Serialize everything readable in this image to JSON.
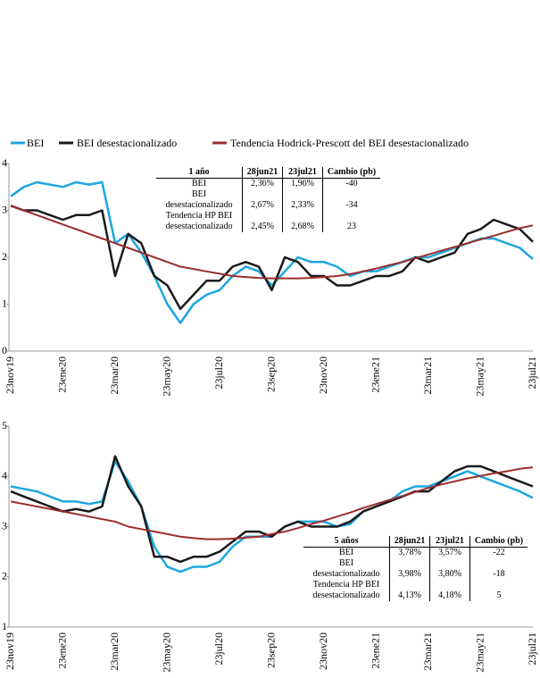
{
  "chart_data": [
    {
      "type": "line",
      "categories": [
        "23nov19",
        null,
        null,
        null,
        "23ene20",
        null,
        null,
        null,
        "23mar20",
        null,
        null,
        null,
        "23may20",
        null,
        null,
        null,
        "23jul20",
        null,
        null,
        null,
        "23sep20",
        null,
        null,
        null,
        "23nov20",
        null,
        null,
        null,
        "23ene21",
        null,
        null,
        null,
        "23mar21",
        null,
        null,
        null,
        "23may21",
        null,
        null,
        null,
        "23jul21"
      ],
      "ylim": [
        0,
        4
      ],
      "yticks": [
        0,
        1,
        2,
        3,
        4
      ],
      "series": [
        {
          "name": "BEI",
          "color": "#1ca6e0",
          "values": [
            3.3,
            3.5,
            3.6,
            3.55,
            3.5,
            3.6,
            3.55,
            3.6,
            2.3,
            2.5,
            2.1,
            1.6,
            1.0,
            0.6,
            1.0,
            1.2,
            1.3,
            1.6,
            1.8,
            1.7,
            1.4,
            1.7,
            2.0,
            1.9,
            1.9,
            1.8,
            1.6,
            1.7,
            1.7,
            1.8,
            1.9,
            2.0,
            2.0,
            2.1,
            2.2,
            2.3,
            2.4,
            2.4,
            2.3,
            2.2,
            1.96
          ]
        },
        {
          "name": "BEI desestacionalizado",
          "color": "#1a1a1a",
          "values": [
            3.1,
            3.0,
            3.0,
            2.9,
            2.8,
            2.9,
            2.9,
            3.0,
            1.6,
            2.5,
            2.3,
            1.6,
            1.4,
            0.9,
            1.2,
            1.5,
            1.5,
            1.8,
            1.9,
            1.8,
            1.3,
            2.0,
            1.9,
            1.6,
            1.6,
            1.4,
            1.4,
            1.5,
            1.6,
            1.6,
            1.7,
            2.0,
            1.9,
            2.0,
            2.1,
            2.5,
            2.6,
            2.8,
            2.7,
            2.6,
            2.33
          ]
        },
        {
          "name": "Tendencia Hodrick-Prescott del BEI desestacionalizado",
          "color": "#9b2d2d",
          "values": [
            3.1,
            3.0,
            2.9,
            2.8,
            2.7,
            2.6,
            2.5,
            2.4,
            2.3,
            2.2,
            2.1,
            2.0,
            1.9,
            1.8,
            1.75,
            1.7,
            1.65,
            1.6,
            1.58,
            1.56,
            1.55,
            1.55,
            1.55,
            1.56,
            1.58,
            1.6,
            1.64,
            1.7,
            1.76,
            1.83,
            1.9,
            1.98,
            2.06,
            2.14,
            2.22,
            2.3,
            2.38,
            2.46,
            2.54,
            2.62,
            2.68
          ]
        }
      ],
      "table": {
        "header": [
          "1 año",
          "28jun21",
          "23jul21",
          "Cambio (pb)"
        ],
        "rows": [
          [
            "BEI",
            "2,36%",
            "1,96%",
            "-40"
          ],
          [
            "BEI desestacionalizado",
            "2,67%",
            "2,33%",
            "-34"
          ],
          [
            "Tendencia HP BEI desestacionalizado",
            "2,45%",
            "2,68%",
            "23"
          ]
        ]
      }
    },
    {
      "type": "line",
      "categories": [
        "23nov19",
        null,
        null,
        null,
        "23ene20",
        null,
        null,
        null,
        "23mar20",
        null,
        null,
        null,
        "23may20",
        null,
        null,
        null,
        "23jul20",
        null,
        null,
        null,
        "23sep20",
        null,
        null,
        null,
        "23nov20",
        null,
        null,
        null,
        "23ene21",
        null,
        null,
        null,
        "23mar21",
        null,
        null,
        null,
        "23may21",
        null,
        null,
        null,
        "23jul21"
      ],
      "ylim": [
        1,
        5
      ],
      "yticks": [
        1,
        2,
        3,
        4,
        5
      ],
      "series": [
        {
          "color": "#1ca6e0",
          "values": [
            3.8,
            3.75,
            3.7,
            3.6,
            3.5,
            3.5,
            3.45,
            3.5,
            4.3,
            3.9,
            3.4,
            2.6,
            2.2,
            2.1,
            2.2,
            2.2,
            2.3,
            2.6,
            2.8,
            2.8,
            2.8,
            3.0,
            3.1,
            3.1,
            3.1,
            3.0,
            3.05,
            3.3,
            3.4,
            3.5,
            3.7,
            3.8,
            3.8,
            3.9,
            4.0,
            4.1,
            4.0,
            3.9,
            3.8,
            3.7,
            3.57
          ]
        },
        {
          "color": "#1a1a1a",
          "values": [
            3.7,
            3.6,
            3.5,
            3.4,
            3.3,
            3.35,
            3.3,
            3.4,
            4.4,
            3.8,
            3.4,
            2.4,
            2.4,
            2.3,
            2.4,
            2.4,
            2.5,
            2.7,
            2.9,
            2.9,
            2.8,
            3.0,
            3.1,
            3.0,
            3.0,
            3.0,
            3.1,
            3.3,
            3.4,
            3.5,
            3.6,
            3.7,
            3.7,
            3.9,
            4.1,
            4.2,
            4.2,
            4.1,
            4.0,
            3.9,
            3.8
          ]
        },
        {
          "color": "#9b2d2d",
          "values": [
            3.5,
            3.45,
            3.4,
            3.35,
            3.3,
            3.25,
            3.2,
            3.15,
            3.1,
            3.0,
            2.95,
            2.9,
            2.85,
            2.8,
            2.77,
            2.75,
            2.75,
            2.76,
            2.78,
            2.8,
            2.85,
            2.9,
            2.97,
            3.05,
            3.12,
            3.2,
            3.28,
            3.37,
            3.45,
            3.53,
            3.61,
            3.69,
            3.77,
            3.84,
            3.9,
            3.96,
            4.01,
            4.06,
            4.1,
            4.15,
            4.18
          ]
        }
      ],
      "table": {
        "header": [
          "5 años",
          "28jun21",
          "23jul21",
          "Cambio (pb)"
        ],
        "rows": [
          [
            "BEI",
            "3,78%",
            "3,57%",
            "-22"
          ],
          [
            "BEI desestacionalizado",
            "3,98%",
            "3,80%",
            "-18"
          ],
          [
            "Tendencia HP BEI desestacionalizado",
            "4,13%",
            "4,18%",
            "5"
          ]
        ]
      }
    }
  ]
}
